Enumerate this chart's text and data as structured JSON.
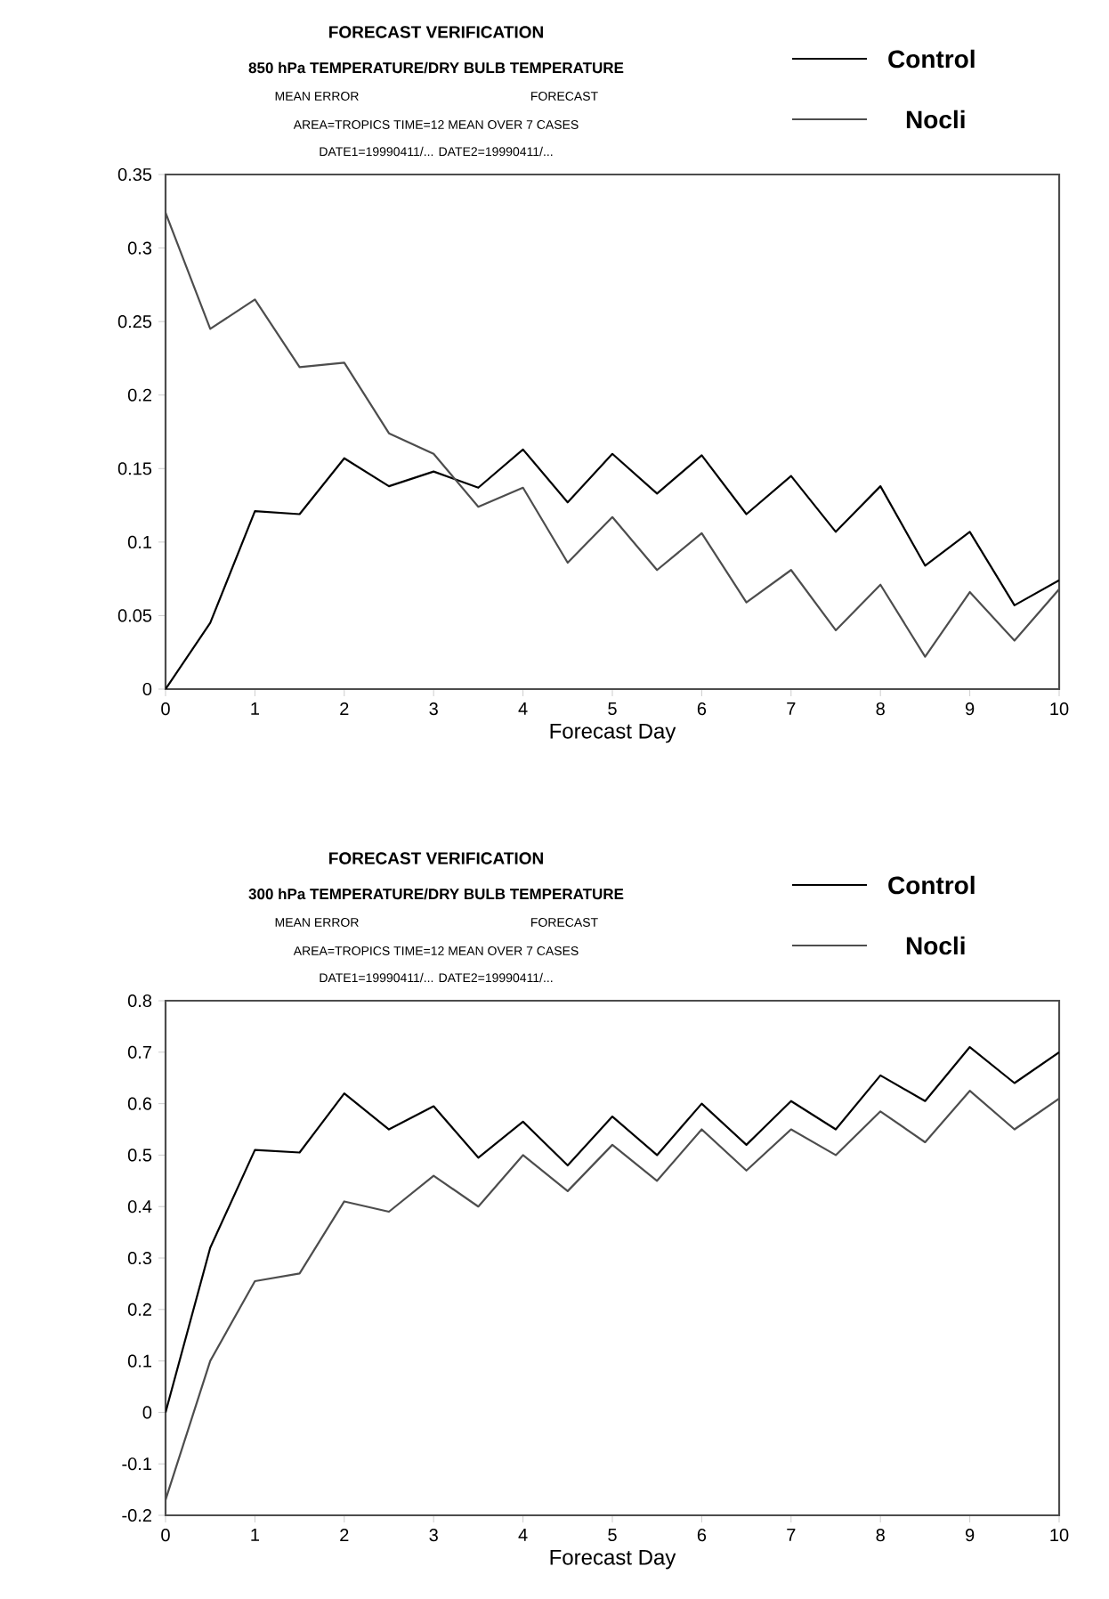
{
  "chart_data": [
    {
      "type": "line",
      "title": "FORECAST VERIFICATION",
      "subtitle": "850 hPa TEMPERATURE/DRY BULB TEMPERATURE",
      "xlabel": "Forecast Day",
      "annotations": [
        "MEAN ERROR",
        "FORECAST",
        "AREA=TROPICS   TIME=12   MEAN OVER   7 CASES",
        "DATE1=19990411/... DATE2=19990411/..."
      ],
      "x": [
        0,
        0.5,
        1,
        1.5,
        2,
        2.5,
        3,
        3.5,
        4,
        4.5,
        5,
        5.5,
        6,
        6.5,
        7,
        7.5,
        8,
        8.5,
        9,
        9.5,
        10
      ],
      "series": [
        {
          "name": "Control",
          "color": "#000000",
          "values": [
            0,
            0.045,
            0.121,
            0.119,
            0.157,
            0.138,
            0.148,
            0.137,
            0.163,
            0.127,
            0.16,
            0.133,
            0.159,
            0.119,
            0.145,
            0.107,
            0.138,
            0.084,
            0.107,
            0.057,
            0.074
          ]
        },
        {
          "name": "Nocli",
          "color": "#4d4d4d",
          "values": [
            0.324,
            0.245,
            0.265,
            0.219,
            0.222,
            0.174,
            0.16,
            0.124,
            0.137,
            0.086,
            0.117,
            0.081,
            0.106,
            0.059,
            0.081,
            0.04,
            0.071,
            0.022,
            0.066,
            0.033,
            0.068
          ]
        }
      ],
      "xlim": [
        0,
        10
      ],
      "xticks": [
        0,
        1,
        2,
        3,
        4,
        5,
        6,
        7,
        8,
        9,
        10
      ],
      "ylim": [
        0,
        0.35
      ],
      "yticks": [
        0,
        0.05,
        0.1,
        0.15,
        0.2,
        0.25,
        0.3,
        0.35
      ],
      "grid": false,
      "legend": "top right"
    },
    {
      "type": "line",
      "title": "FORECAST VERIFICATION",
      "subtitle": "300 hPa TEMPERATURE/DRY BULB TEMPERATURE",
      "xlabel": "Forecast Day",
      "annotations": [
        "MEAN ERROR",
        "FORECAST",
        "AREA=TROPICS   TIME=12   MEAN OVER   7 CASES",
        "DATE1=19990411/... DATE2=19990411/..."
      ],
      "x": [
        0,
        0.5,
        1,
        1.5,
        2,
        2.5,
        3,
        3.5,
        4,
        4.5,
        5,
        5.5,
        6,
        6.5,
        7,
        7.5,
        8,
        8.5,
        9,
        9.5,
        10
      ],
      "series": [
        {
          "name": "Control",
          "color": "#000000",
          "values": [
            0,
            0.32,
            0.51,
            0.505,
            0.62,
            0.55,
            0.595,
            0.495,
            0.565,
            0.48,
            0.575,
            0.5,
            0.6,
            0.52,
            0.605,
            0.55,
            0.655,
            0.605,
            0.71,
            0.64,
            0.7
          ]
        },
        {
          "name": "Nocli",
          "color": "#4d4d4d",
          "values": [
            -0.17,
            0.1,
            0.255,
            0.27,
            0.41,
            0.39,
            0.46,
            0.4,
            0.5,
            0.43,
            0.52,
            0.45,
            0.55,
            0.47,
            0.55,
            0.5,
            0.585,
            0.525,
            0.625,
            0.55,
            0.61
          ]
        }
      ],
      "xlim": [
        0,
        10
      ],
      "xticks": [
        0,
        1,
        2,
        3,
        4,
        5,
        6,
        7,
        8,
        9,
        10
      ],
      "ylim": [
        -0.2,
        0.8
      ],
      "yticks": [
        -0.2,
        -0.1,
        0,
        0.1,
        0.2,
        0.3,
        0.4,
        0.5,
        0.6,
        0.7,
        0.8
      ],
      "grid": false,
      "legend": "top right"
    }
  ]
}
